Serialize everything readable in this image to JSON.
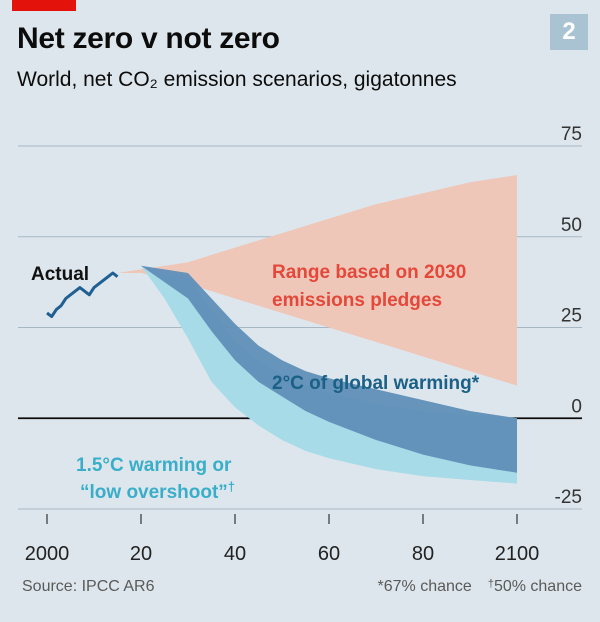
{
  "header": {
    "title": "Net zero v not zero",
    "subtitle": "World, net CO₂ emission scenarios, gigatonnes",
    "chart_number": "2"
  },
  "footer": {
    "source": "Source: IPCC AR6",
    "note_2c": "*67% chance",
    "note_15c": "50% chance",
    "note_15c_mark": "†"
  },
  "colors": {
    "background": "#dde6ec",
    "actual_line": "#1f5f92",
    "pledges_band": "#efc7b9",
    "band_2c": "#5f8fb8",
    "band_15c": "#a8dbe8",
    "label_pledges": "#e3483a",
    "label_2c": "#1b6086",
    "label_15c": "#3aaec9",
    "zero_line": "#0c0c0c",
    "grid": "#a7b8c3"
  },
  "chart_data": {
    "type": "area",
    "xlim": [
      2000,
      2100
    ],
    "ylim": [
      -25,
      75
    ],
    "x_ticks": [
      2000,
      2020,
      2040,
      2060,
      2080,
      2100
    ],
    "x_tick_labels": [
      "2000",
      "20",
      "40",
      "60",
      "80",
      "2100"
    ],
    "y_ticks": [
      -25,
      0,
      25,
      50,
      75
    ],
    "y_tick_labels": [
      "-25",
      "0",
      "25",
      "50",
      "75"
    ],
    "grid": true,
    "series": [
      {
        "name": "Range based on 2030 emissions pledges",
        "kind": "band",
        "x": [
          2015,
          2020,
          2030,
          2040,
          2050,
          2060,
          2070,
          2080,
          2090,
          2100
        ],
        "upper": [
          40,
          41,
          43,
          47,
          51,
          55,
          59,
          62,
          65,
          67
        ],
        "lower": [
          40,
          40,
          37,
          33,
          29,
          25,
          21,
          17,
          13,
          9
        ]
      },
      {
        "name": "1.5°C warming or “low overshoot”",
        "footnote_mark": "†",
        "kind": "band",
        "x": [
          2020,
          2025,
          2030,
          2035,
          2040,
          2045,
          2050,
          2055,
          2060,
          2070,
          2080,
          2090,
          2100
        ],
        "upper": [
          42,
          40,
          39,
          30,
          21,
          16,
          12,
          9,
          7,
          4,
          2,
          1,
          0
        ],
        "lower": [
          42,
          33,
          22,
          10,
          3,
          -2,
          -6,
          -9,
          -11,
          -14,
          -16,
          -17,
          -18
        ]
      },
      {
        "name": "2°C of global warming*",
        "kind": "band",
        "x": [
          2020,
          2030,
          2035,
          2040,
          2045,
          2050,
          2055,
          2060,
          2070,
          2080,
          2090,
          2100
        ],
        "upper": [
          42,
          40,
          33,
          26,
          20,
          16,
          13,
          11,
          8,
          5,
          2,
          0
        ],
        "lower": [
          42,
          33,
          24,
          16,
          10,
          6,
          2,
          -1,
          -6,
          -10,
          -13,
          -15
        ]
      },
      {
        "name": "Actual",
        "kind": "line",
        "x": [
          2000,
          2001,
          2002,
          2003,
          2004,
          2005,
          2006,
          2007,
          2008,
          2009,
          2010,
          2011,
          2012,
          2013,
          2014,
          2015
        ],
        "y": [
          29,
          28,
          30,
          31,
          33,
          34,
          35,
          36,
          35,
          34,
          36,
          37,
          38,
          39,
          40,
          39
        ]
      }
    ],
    "labels": {
      "actual": "Actual",
      "pledges_line1": "Range based on 2030",
      "pledges_line2": "emissions pledges",
      "warming_2c": "2°C of global warming*",
      "warming_15c_line1": "1.5°C warming or",
      "warming_15c_line2": "“low overshoot”",
      "warming_15c_mark": "†"
    }
  }
}
